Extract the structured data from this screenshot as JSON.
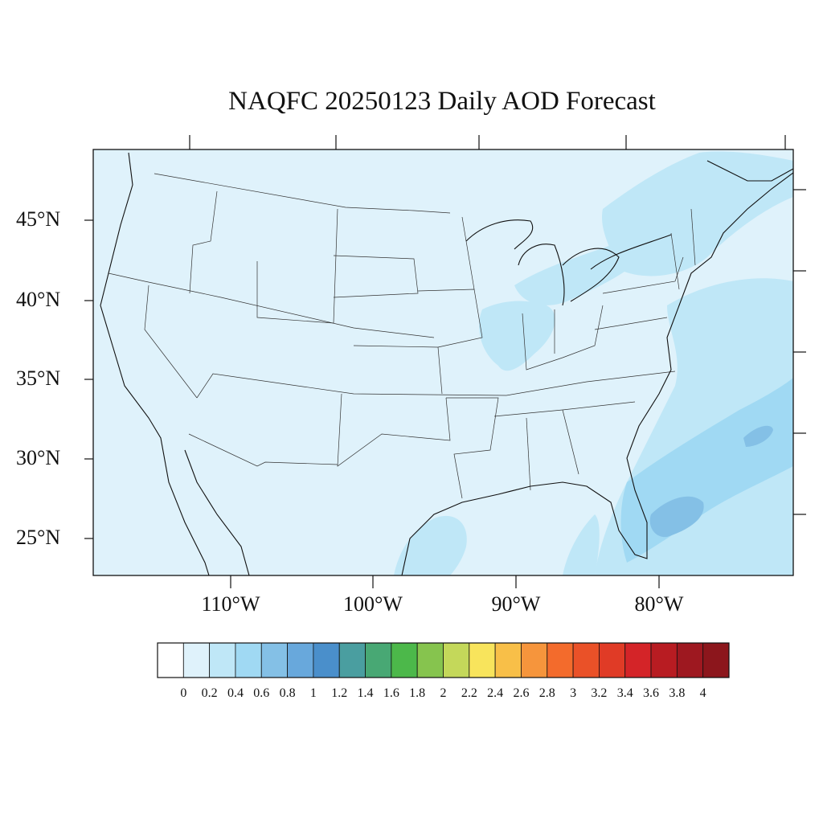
{
  "title": "NAQFC 20250123 Daily AOD Forecast",
  "lat_labels": [
    "45°N",
    "40°N",
    "35°N",
    "30°N",
    "25°N"
  ],
  "lon_labels": [
    "110°W",
    "100°W",
    "90°W",
    "80°W"
  ],
  "colorbar": {
    "labels": [
      "0",
      "0.2",
      "0.4",
      "0.6",
      "0.8",
      "1",
      "1.2",
      "1.4",
      "1.6",
      "1.8",
      "2",
      "2.2",
      "2.4",
      "2.6",
      "2.8",
      "3",
      "3.2",
      "3.4",
      "3.6",
      "3.8",
      "4"
    ],
    "colors": [
      "#ffffff",
      "#dff2fb",
      "#bfe7f7",
      "#a0d9f3",
      "#84c0e6",
      "#68a8dc",
      "#4a8fcb",
      "#4a9ea0",
      "#48a874",
      "#4cb84a",
      "#86c44e",
      "#c4d85a",
      "#f8e45c",
      "#f8bf48",
      "#f6953c",
      "#f36b2c",
      "#ea5128",
      "#e03b26",
      "#d42428",
      "#b81c22",
      "#9e1820",
      "#8c161c"
    ]
  },
  "map": {
    "background_aod_color": "#dff2fb",
    "elevated_aod_color": "#bfe7f7",
    "high_aod_color": "#a0d9f3",
    "peak_aod_color": "#84c0e6"
  }
}
